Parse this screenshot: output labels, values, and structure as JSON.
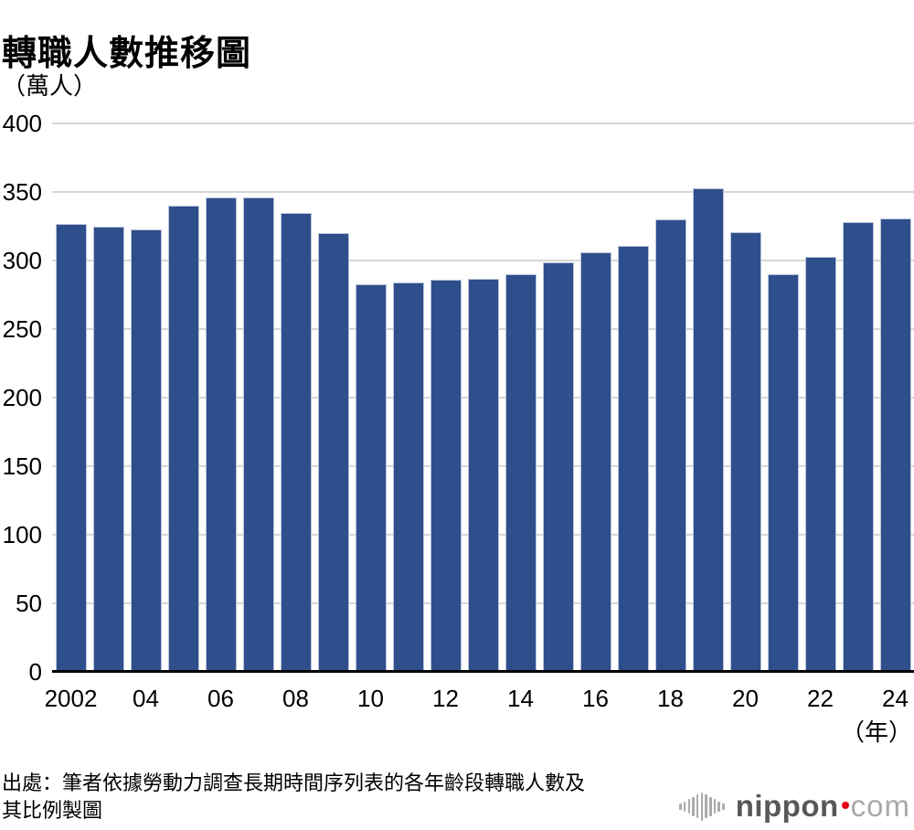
{
  "chart": {
    "title": "轉職人數推移圖",
    "unit_label": "（萬人）",
    "year_suffix": "（年）"
  },
  "chart_data": {
    "type": "bar",
    "title": "轉職人數推移圖",
    "xlabel": "年",
    "ylabel": "萬人",
    "categories": [
      "2002",
      "2003",
      "2004",
      "2005",
      "2006",
      "2007",
      "2008",
      "2009",
      "2010",
      "2011",
      "2012",
      "2013",
      "2014",
      "2015",
      "2016",
      "2017",
      "2018",
      "2019",
      "2020",
      "2021",
      "2022",
      "2023",
      "2024"
    ],
    "values": [
      327,
      325,
      323,
      340,
      346,
      346,
      335,
      320,
      283,
      284,
      286,
      287,
      290,
      299,
      306,
      311,
      330,
      353,
      321,
      290,
      303,
      328,
      331
    ],
    "ylim": [
      0,
      400
    ],
    "yticks": [
      0,
      50,
      100,
      150,
      200,
      250,
      300,
      350,
      400
    ],
    "xtick_labels": [
      "2002",
      "04",
      "06",
      "08",
      "10",
      "12",
      "14",
      "16",
      "18",
      "20",
      "22",
      "24"
    ],
    "xtick_indices": [
      0,
      2,
      4,
      6,
      8,
      10,
      12,
      14,
      16,
      18,
      20,
      22
    ],
    "bar_color": "#2F4E8C",
    "grid": true,
    "legend": "none"
  },
  "source": {
    "line1": "出處：筆者依據勞動力調查長期時間序列表的各年齡段轉職人數及",
    "line2": "其比例製圖"
  },
  "logo": {
    "name": "nippon",
    "tld": "com",
    "dot_color": "#e60012"
  }
}
